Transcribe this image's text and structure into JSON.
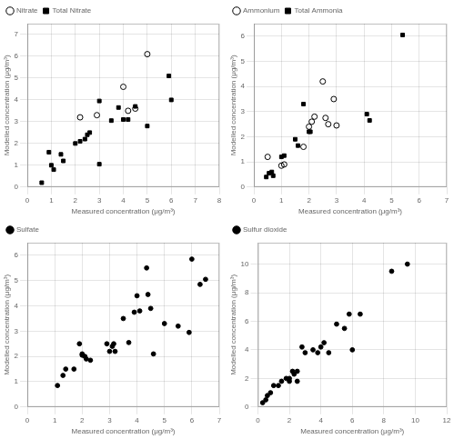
{
  "chart_data": [
    {
      "type": "scatter",
      "xlabel": "Measured concentration (μg/m³)",
      "ylabel": "Modelled concentration (μg/m³)",
      "xlim": [
        0,
        8
      ],
      "ylim": [
        0,
        7.5
      ],
      "xticks": [
        0,
        1,
        2,
        3,
        4,
        5,
        6,
        7,
        8
      ],
      "yticks": [
        0,
        1,
        2,
        3,
        4,
        5,
        6,
        7
      ],
      "grid": true,
      "legend": "upper left",
      "series": [
        {
          "name": "Nitrate",
          "color": "#000000",
          "marker": "open_circle",
          "x": [
            2.2,
            2.9,
            4.0,
            4.2,
            4.5,
            5.0
          ],
          "values": [
            3.2,
            3.3,
            4.6,
            3.5,
            3.6,
            6.1
          ]
        },
        {
          "name": "Total Nitrate",
          "color": "#000000",
          "marker": "square",
          "x": [
            0.6,
            0.9,
            1.0,
            1.1,
            1.4,
            1.5,
            2.0,
            2.2,
            2.4,
            2.5,
            2.6,
            3.0,
            3.0,
            3.5,
            3.8,
            4.0,
            4.2,
            4.5,
            5.0,
            5.9,
            6.0
          ],
          "values": [
            0.2,
            1.6,
            1.0,
            0.8,
            1.5,
            1.2,
            2.0,
            2.1,
            2.2,
            2.4,
            2.5,
            1.05,
            3.95,
            3.05,
            3.65,
            3.1,
            3.1,
            3.7,
            2.8,
            5.1,
            4.0
          ]
        }
      ]
    },
    {
      "type": "scatter",
      "xlabel": "Measured concentration (μg/m³)",
      "ylabel": "Modelled concentration (μg/m³)",
      "xlim": [
        0,
        7
      ],
      "ylim": [
        0,
        6.5
      ],
      "xticks": [
        0,
        1,
        2,
        3,
        4,
        5,
        6,
        7
      ],
      "yticks": [
        0,
        1,
        2,
        3,
        4,
        5,
        6
      ],
      "grid": true,
      "legend": "upper left",
      "series": [
        {
          "name": "Ammonium",
          "color": "#000000",
          "marker": "open_circle",
          "x": [
            0.5,
            1.0,
            1.1,
            1.8,
            2.0,
            2.1,
            2.2,
            2.5,
            2.6,
            2.7,
            2.9,
            3.0
          ],
          "values": [
            1.2,
            0.85,
            0.9,
            1.6,
            2.4,
            2.6,
            2.8,
            4.2,
            2.75,
            2.5,
            3.5,
            2.45
          ]
        },
        {
          "name": "Total Ammonia",
          "color": "#000000",
          "marker": "square",
          "x": [
            0.45,
            0.55,
            0.65,
            0.7,
            1.0,
            1.1,
            1.5,
            1.6,
            1.8,
            2.0,
            2.05,
            4.1,
            4.2,
            5.4
          ],
          "values": [
            0.4,
            0.55,
            0.6,
            0.45,
            1.2,
            1.25,
            1.9,
            1.65,
            3.3,
            2.2,
            2.2,
            2.9,
            2.65,
            6.05
          ]
        }
      ]
    },
    {
      "type": "scatter",
      "xlabel": "Measured concentration (μg/m³)",
      "ylabel": "Modelled concentration (μg/m³)",
      "xlim": [
        0,
        7
      ],
      "ylim": [
        0,
        6.5
      ],
      "xticks": [
        0,
        1,
        2,
        3,
        4,
        5,
        6,
        7
      ],
      "yticks": [
        0,
        1,
        2,
        3,
        4,
        5,
        6
      ],
      "grid": true,
      "legend": "upper left",
      "series": [
        {
          "name": "Sulfate",
          "color": "#000000",
          "marker": "circle",
          "x": [
            1.1,
            1.3,
            1.4,
            1.7,
            1.9,
            2.0,
            2.0,
            2.1,
            2.15,
            2.3,
            2.9,
            3.0,
            3.1,
            3.15,
            3.2,
            3.5,
            3.7,
            3.9,
            4.0,
            4.1,
            4.35,
            4.4,
            4.5,
            4.6,
            5.0,
            5.5,
            5.9,
            6.0,
            6.3,
            6.5
          ],
          "values": [
            0.85,
            1.25,
            1.5,
            1.5,
            2.5,
            2.1,
            2.05,
            2.0,
            1.9,
            1.85,
            2.5,
            2.2,
            2.4,
            2.5,
            2.2,
            3.5,
            2.55,
            3.75,
            4.4,
            3.8,
            5.5,
            4.45,
            3.9,
            2.1,
            3.3,
            3.2,
            2.95,
            5.85,
            4.85,
            5.05
          ]
        }
      ]
    },
    {
      "type": "scatter",
      "xlabel": "Measured concentration (μg/m³)",
      "ylabel": "Modelled concentration (μg/m³)",
      "xlim": [
        0,
        12
      ],
      "ylim": [
        0,
        11.5
      ],
      "xticks": [
        0,
        2,
        4,
        6,
        8,
        10,
        12
      ],
      "yticks": [
        0,
        2,
        4,
        6,
        8,
        10
      ],
      "grid": true,
      "legend": "upper left",
      "series": [
        {
          "name": "Sulfur dioxide",
          "color": "#000000",
          "marker": "circle",
          "x": [
            0.3,
            0.5,
            0.6,
            0.8,
            1.0,
            1.3,
            1.5,
            1.8,
            2.0,
            2.0,
            2.2,
            2.3,
            2.5,
            2.5,
            2.8,
            3.0,
            3.5,
            3.8,
            4.0,
            4.2,
            4.5,
            5.0,
            5.5,
            5.8,
            6.0,
            6.5,
            8.5,
            9.5
          ],
          "values": [
            0.3,
            0.5,
            0.8,
            1.0,
            1.5,
            1.5,
            1.8,
            2.0,
            2.0,
            1.8,
            2.5,
            2.3,
            2.5,
            1.8,
            4.2,
            3.8,
            4.0,
            3.8,
            4.2,
            4.5,
            3.8,
            5.8,
            5.5,
            6.5,
            4.0,
            6.5,
            9.5,
            10.0
          ]
        }
      ]
    }
  ]
}
